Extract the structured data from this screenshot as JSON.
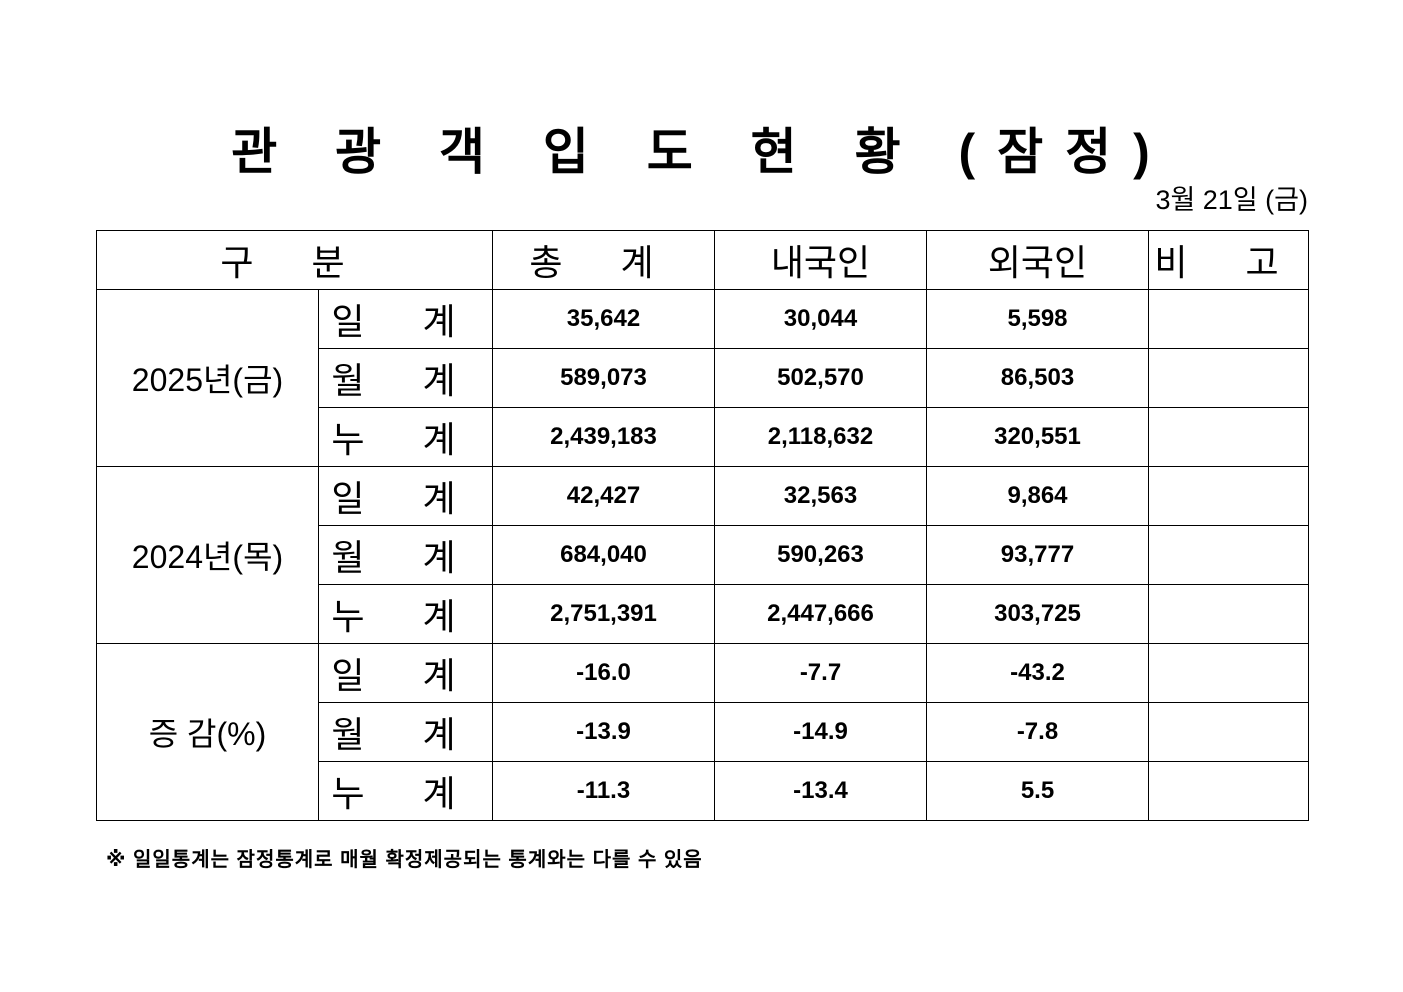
{
  "title": "관 광 객 입 도 현 황 (잠정)",
  "date": "3월 21일 (금)",
  "table": {
    "headers": [
      "구 분",
      "총 계",
      "내국인",
      "외국인",
      "비 고"
    ],
    "groups": [
      {
        "label": "2025년(금)",
        "rows": [
          {
            "label": "일 계",
            "total": "35,642",
            "domestic": "30,044",
            "foreign": "5,598",
            "note": ""
          },
          {
            "label": "월 계",
            "total": "589,073",
            "domestic": "502,570",
            "foreign": "86,503",
            "note": ""
          },
          {
            "label": "누 계",
            "total": "2,439,183",
            "domestic": "2,118,632",
            "foreign": "320,551",
            "note": ""
          }
        ]
      },
      {
        "label": "2024년(목)",
        "rows": [
          {
            "label": "일 계",
            "total": "42,427",
            "domestic": "32,563",
            "foreign": "9,864",
            "note": ""
          },
          {
            "label": "월 계",
            "total": "684,040",
            "domestic": "590,263",
            "foreign": "93,777",
            "note": ""
          },
          {
            "label": "누 계",
            "total": "2,751,391",
            "domestic": "2,447,666",
            "foreign": "303,725",
            "note": ""
          }
        ]
      },
      {
        "label": "증 감(%)",
        "rows": [
          {
            "label": "일 계",
            "total": "-16.0",
            "domestic": "-7.7",
            "foreign": "-43.2",
            "note": ""
          },
          {
            "label": "월 계",
            "total": "-13.9",
            "domestic": "-14.9",
            "foreign": "-7.8",
            "note": ""
          },
          {
            "label": "누 계",
            "total": "-11.3",
            "domestic": "-13.4",
            "foreign": "5.5",
            "note": ""
          }
        ]
      }
    ]
  },
  "footnote": "※ 일일통계는 잠정통계로 매월 확정제공되는 통계와는 다를 수 있음"
}
